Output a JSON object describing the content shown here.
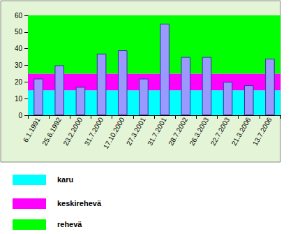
{
  "chart_data": {
    "type": "bar",
    "categories": [
      "6.1.1991",
      "25.6.1992",
      "23.2.2000",
      "31.7.2000",
      "17.10.2000",
      "27.3.2001",
      "31.7.2001",
      "28.7.2002",
      "26.3.2003",
      "22.7.2003",
      "21.3.2006",
      "13.7.2006"
    ],
    "values": [
      22,
      30,
      17,
      37,
      39,
      22,
      55,
      35,
      35,
      20,
      18,
      34
    ],
    "color": "#9999ff",
    "ylim": [
      0,
      60
    ],
    "yticks": [
      0,
      10,
      20,
      30,
      40,
      50,
      60
    ],
    "grid": false,
    "bands": [
      {
        "name": "karu",
        "color": "#00ffff",
        "from": 0,
        "to": 15
      },
      {
        "name": "keskirehevä",
        "color": "#ff00ff",
        "from": 15,
        "to": 25
      },
      {
        "name": "rehevä",
        "color": "#00ff00",
        "from": 25,
        "to": 60
      }
    ]
  }
}
